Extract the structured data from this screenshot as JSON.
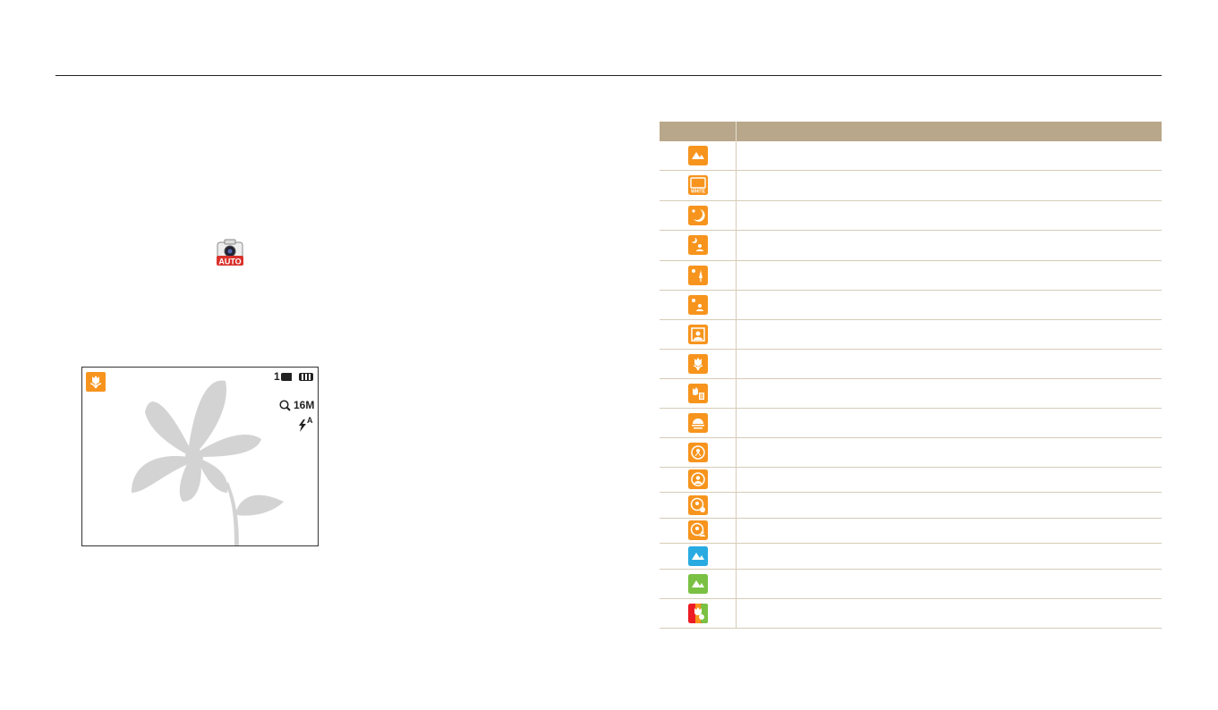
{
  "header": {
    "title": ""
  },
  "camera_icon": {
    "icon": "smart-auto-camera-icon",
    "label": "AUTO",
    "color": "#d9312b"
  },
  "preview": {
    "mode_icon": "macro-flower-icon",
    "shots_remaining": "1",
    "resolution": "16M",
    "flash_mode": "A",
    "mode_color": "#f7941d"
  },
  "table": {
    "headers": [
      "",
      ""
    ],
    "rows": [
      {
        "icon": "landscape-icon",
        "color": "#f7941d",
        "description": ""
      },
      {
        "icon": "white-icon",
        "color": "#f7941d",
        "label": "WHITE",
        "description": ""
      },
      {
        "icon": "night-icon",
        "color": "#f7941d",
        "description": ""
      },
      {
        "icon": "night-portrait-icon",
        "color": "#f7941d",
        "description": ""
      },
      {
        "icon": "night-landscape-icon",
        "color": "#f7941d",
        "description": ""
      },
      {
        "icon": "backlight-portrait-icon",
        "color": "#f7941d",
        "description": ""
      },
      {
        "icon": "portrait-icon",
        "color": "#f7941d",
        "description": ""
      },
      {
        "icon": "macro-icon",
        "color": "#f7941d",
        "description": ""
      },
      {
        "icon": "macro-text-icon",
        "color": "#f7941d",
        "description": ""
      },
      {
        "icon": "sunset-icon",
        "color": "#f7941d",
        "description": ""
      },
      {
        "icon": "tripod-icon",
        "color": "#f7941d",
        "description": ""
      },
      {
        "icon": "action-icon",
        "color": "#f7941d",
        "description": ""
      },
      {
        "icon": "action-portrait-icon",
        "color": "#f7941d",
        "description": ""
      },
      {
        "icon": "action-backlight-icon",
        "color": "#f7941d",
        "description": ""
      },
      {
        "icon": "blue-sky-icon",
        "color": "#29abe2",
        "description": ""
      },
      {
        "icon": "natural-green-icon",
        "color": "#7ac143",
        "description": ""
      },
      {
        "icon": "macro-color-icon",
        "color": "#ed1c24",
        "description": ""
      }
    ]
  }
}
